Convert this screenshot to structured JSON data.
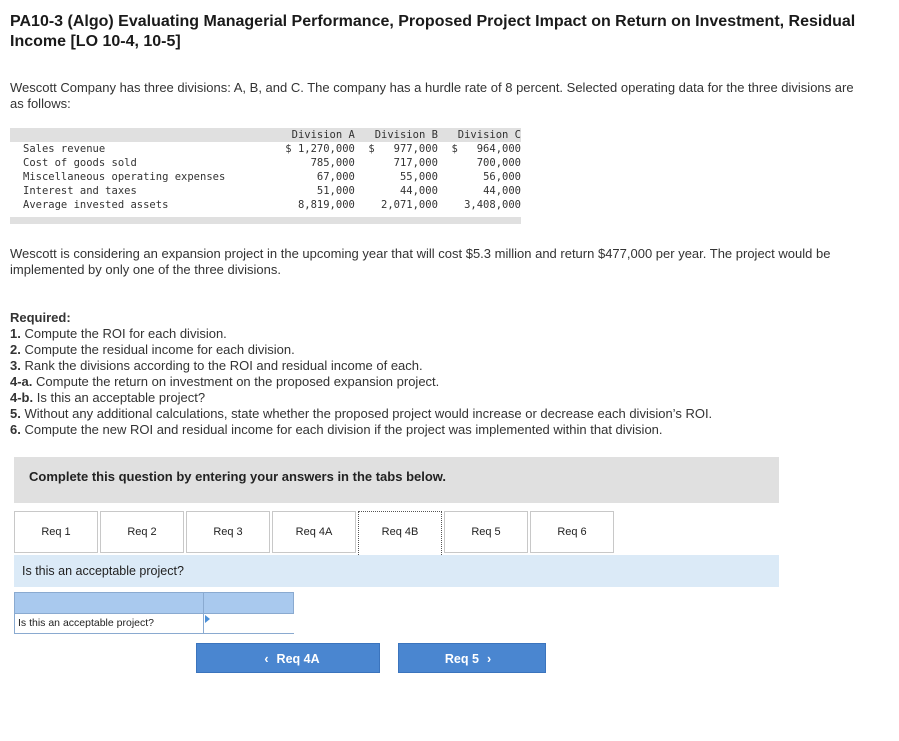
{
  "title": "PA10-3 (Algo) Evaluating Managerial Performance, Proposed Project Impact on Return on Investment, Residual Income [LO 10-4, 10-5]",
  "intro": "Wescott Company has three divisions: A, B, and C. The company has a hurdle rate of 8 percent. Selected operating data for the three divisions are as follows:",
  "table": {
    "headers": [
      "Division A",
      "Division B",
      "Division C"
    ],
    "rows": [
      {
        "label": "Sales revenue",
        "a": "$ 1,270,000",
        "b": "$   977,000",
        "c": "$   964,000"
      },
      {
        "label": "Cost of goods sold",
        "a": "785,000",
        "b": "717,000",
        "c": "700,000"
      },
      {
        "label": "Miscellaneous operating expenses",
        "a": "67,000",
        "b": "55,000",
        "c": "56,000"
      },
      {
        "label": "Interest and taxes",
        "a": "51,000",
        "b": "44,000",
        "c": "44,000"
      },
      {
        "label": "Average invested assets",
        "a": "8,819,000",
        "b": "2,071,000",
        "c": "3,408,000"
      }
    ]
  },
  "project": "Wescott is considering an expansion project in the upcoming year that will cost $5.3 million and return $477,000 per year. The project would be implemented by only one of the three divisions.",
  "required": {
    "heading": "Required:",
    "items": [
      {
        "num": "1.",
        "text": "Compute the ROI for each division."
      },
      {
        "num": "2.",
        "text": "Compute the residual income for each division."
      },
      {
        "num": "3.",
        "text": "Rank the divisions according to the ROI and residual income of each."
      },
      {
        "num": "4-a.",
        "text": "Compute the return on investment on the proposed expansion project."
      },
      {
        "num": "4-b.",
        "text": "Is this an acceptable project?"
      },
      {
        "num": "5.",
        "text": "Without any additional calculations, state whether the proposed project would increase or decrease each division’s ROI."
      },
      {
        "num": "6.",
        "text": "Compute the new ROI and residual income for each division if the project was implemented within that division."
      }
    ]
  },
  "instructions": "Complete this question by entering your answers in the tabs below.",
  "tabs": [
    "Req 1",
    "Req 2",
    "Req 3",
    "Req 4A",
    "Req 4B",
    "Req 5",
    "Req 6"
  ],
  "active_tab": "Req 4B",
  "question": "Is this an acceptable project?",
  "answer_row_label": "Is this an acceptable project?",
  "answer_value": "",
  "nav": {
    "prev_label": "Req 4A",
    "next_label": "Req 5"
  }
}
